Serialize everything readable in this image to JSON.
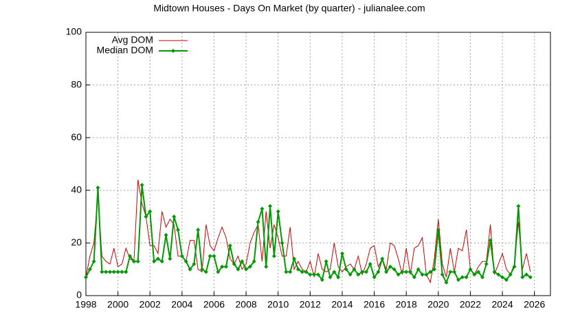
{
  "chart_data": {
    "type": "line",
    "title": "Midtown Houses - Days On Market (by quarter) - julianalee.com",
    "x": [
      1998,
      1998.25,
      1998.5,
      1998.75,
      1999,
      1999.25,
      1999.5,
      1999.75,
      2000,
      2000.25,
      2000.5,
      2000.75,
      2001,
      2001.25,
      2001.5,
      2001.75,
      2002,
      2002.25,
      2002.5,
      2002.75,
      2003,
      2003.25,
      2003.5,
      2003.75,
      2004,
      2004.25,
      2004.5,
      2004.75,
      2005,
      2005.25,
      2005.5,
      2005.75,
      2006,
      2006.25,
      2006.5,
      2006.75,
      2007,
      2007.25,
      2007.5,
      2007.75,
      2008,
      2008.25,
      2008.5,
      2008.75,
      2009,
      2009.25,
      2009.5,
      2009.75,
      2010,
      2010.25,
      2010.5,
      2010.75,
      2011,
      2011.25,
      2011.5,
      2011.75,
      2012,
      2012.25,
      2012.5,
      2012.75,
      2013,
      2013.25,
      2013.5,
      2013.75,
      2014,
      2014.25,
      2014.5,
      2014.75,
      2015,
      2015.25,
      2015.5,
      2015.75,
      2016,
      2016.25,
      2016.5,
      2016.75,
      2017,
      2017.25,
      2017.5,
      2017.75,
      2018,
      2018.25,
      2018.5,
      2018.75,
      2019,
      2019.25,
      2019.5,
      2019.75,
      2020,
      2020.25,
      2020.5,
      2020.75,
      2021,
      2021.25,
      2021.5,
      2021.75,
      2022,
      2022.25,
      2022.5,
      2022.75,
      2023,
      2023.25,
      2023.5,
      2023.75,
      2024,
      2024.25,
      2024.5,
      2024.75,
      2025,
      2025.25,
      2025.5,
      2025.75
    ],
    "series": [
      {
        "name": "Avg DOM",
        "color": "#cc0000",
        "values": [
          7,
          15,
          20,
          38,
          15,
          13,
          12,
          18,
          11,
          12,
          18,
          14,
          13,
          44,
          35,
          30,
          19,
          19,
          16,
          32,
          26,
          29,
          27,
          15,
          15,
          13,
          21,
          21,
          10,
          9,
          27,
          19,
          17,
          22,
          26,
          22,
          14,
          12,
          15,
          10,
          12,
          20,
          24,
          27,
          13,
          32,
          18,
          27,
          22,
          15,
          15,
          26,
          10,
          13,
          10,
          9,
          13,
          7,
          16,
          10,
          9,
          10,
          20,
          11,
          9,
          11,
          12,
          10,
          15,
          8,
          12,
          18,
          19,
          11,
          14,
          10,
          20,
          19,
          14,
          8,
          18,
          8,
          18,
          19,
          22,
          8,
          5,
          14,
          29,
          12,
          7,
          18,
          9,
          18,
          17,
          25,
          10,
          8,
          11,
          13,
          13,
          27,
          8,
          12,
          16,
          10,
          8,
          12,
          28,
          10,
          16,
          9
        ]
      },
      {
        "name": "Median DOM",
        "color": "#009900",
        "values": [
          7,
          10,
          13,
          41,
          9,
          9,
          9,
          9,
          9,
          9,
          9,
          15,
          13,
          13,
          42,
          30,
          32,
          13,
          14,
          13,
          23,
          14,
          30,
          25,
          15,
          13,
          10,
          12,
          25,
          10,
          9,
          15,
          15,
          9,
          11,
          11,
          19,
          12,
          10,
          13,
          10,
          11,
          13,
          28,
          33,
          11,
          34,
          15,
          32,
          20,
          9,
          9,
          14,
          10,
          9,
          9,
          8,
          8,
          8,
          6,
          13,
          7,
          9,
          7,
          16,
          10,
          8,
          10,
          8,
          9,
          9,
          12,
          7,
          9,
          14,
          9,
          11,
          10,
          8,
          9,
          9,
          9,
          7,
          10,
          8,
          8,
          9,
          10,
          25,
          8,
          5,
          9,
          9,
          6,
          7,
          7,
          10,
          8,
          9,
          7,
          12,
          21,
          9,
          8,
          7,
          6,
          8,
          11,
          34,
          7,
          8,
          7
        ]
      }
    ],
    "xlim": [
      1998,
      2027
    ],
    "ylim": [
      0,
      100
    ],
    "xticks": [
      1998,
      2000,
      2002,
      2004,
      2006,
      2008,
      2010,
      2012,
      2014,
      2016,
      2018,
      2020,
      2022,
      2024,
      2026
    ],
    "yticks": [
      0,
      20,
      40,
      60,
      80,
      100
    ],
    "grid": true,
    "legend": "top-left"
  }
}
